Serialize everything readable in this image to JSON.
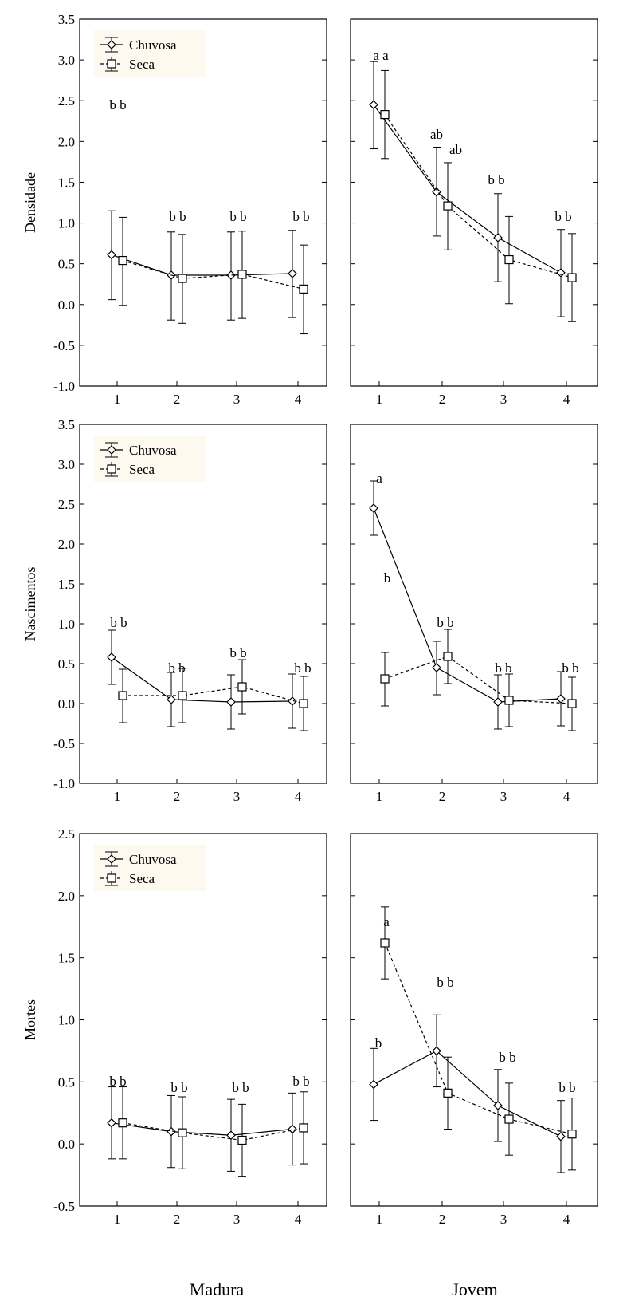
{
  "figure": {
    "group_labels": [
      "Madura",
      "Jovem"
    ]
  },
  "chart_data": [
    {
      "type": "line",
      "row": 0,
      "col": 0,
      "ylabel": "Densidade",
      "ylim": [
        -1.0,
        3.5
      ],
      "yticks": [
        "3.5",
        "3.0",
        "2.5",
        "2.0",
        "1.5",
        "1.0",
        "0.5",
        "0.0",
        "-0.5",
        "-1.0"
      ],
      "x": [
        "1",
        "2",
        "3",
        "4"
      ],
      "legend": {
        "position": "top-left",
        "entries": [
          "Chuvosa",
          "Seca"
        ]
      },
      "series": [
        {
          "name": "Chuvosa",
          "marker": "diamond",
          "dash": "solid",
          "values": [
            0.61,
            0.36,
            0.36,
            0.38
          ],
          "err_low": [
            0.06,
            -0.19,
            -0.19,
            -0.16
          ],
          "err_high": [
            1.15,
            0.89,
            0.89,
            0.91
          ]
        },
        {
          "name": "Seca",
          "marker": "square",
          "dash": "dashed",
          "values": [
            0.54,
            0.32,
            0.37,
            0.19
          ],
          "err_low": [
            -0.01,
            -0.23,
            -0.17,
            -0.36
          ],
          "err_high": [
            1.07,
            0.86,
            0.9,
            0.73
          ]
        }
      ],
      "annotations": [
        "b b",
        "b b",
        "b b",
        "b b"
      ]
    },
    {
      "type": "line",
      "row": 0,
      "col": 1,
      "ylabel": "",
      "ylim": [
        -1.0,
        3.5
      ],
      "x": [
        "1",
        "2",
        "3",
        "4"
      ],
      "series": [
        {
          "name": "Chuvosa",
          "marker": "diamond",
          "dash": "solid",
          "values": [
            2.45,
            1.38,
            0.82,
            0.39
          ],
          "err_low": [
            1.91,
            0.84,
            0.28,
            -0.15
          ],
          "err_high": [
            2.98,
            1.93,
            1.36,
            0.92
          ]
        },
        {
          "name": "Seca",
          "marker": "square",
          "dash": "dashed",
          "values": [
            2.33,
            1.21,
            0.55,
            0.33
          ],
          "err_low": [
            1.79,
            0.67,
            0.01,
            -0.21
          ],
          "err_high": [
            2.87,
            1.74,
            1.08,
            0.87
          ]
        }
      ],
      "annotations": [
        "a a",
        "ab",
        "ab",
        "b b",
        "b b"
      ]
    },
    {
      "type": "line",
      "row": 1,
      "col": 0,
      "ylabel": "Nascimentos",
      "ylim": [
        -1.0,
        3.5
      ],
      "yticks": [
        "3.5",
        "3.0",
        "2.5",
        "2.0",
        "1.5",
        "1.0",
        "0.5",
        "0.0",
        "-0.5",
        "-1.0"
      ],
      "x": [
        "1",
        "2",
        "3",
        "4"
      ],
      "legend": {
        "position": "top-left",
        "entries": [
          "Chuvosa",
          "Seca"
        ]
      },
      "series": [
        {
          "name": "Chuvosa",
          "marker": "diamond",
          "dash": "solid",
          "values": [
            0.58,
            0.05,
            0.02,
            0.03
          ],
          "err_low": [
            0.24,
            -0.29,
            -0.32,
            -0.31
          ],
          "err_high": [
            0.92,
            0.39,
            0.36,
            0.37
          ]
        },
        {
          "name": "Seca",
          "marker": "square",
          "dash": "dashed",
          "values": [
            0.1,
            0.1,
            0.21,
            0.0
          ],
          "err_low": [
            -0.24,
            -0.24,
            -0.13,
            -0.34
          ],
          "err_high": [
            0.43,
            0.44,
            0.55,
            0.34
          ]
        }
      ],
      "annotations": [
        "b b",
        "b b",
        "b b",
        "b b"
      ]
    },
    {
      "type": "line",
      "row": 1,
      "col": 1,
      "ylabel": "",
      "ylim": [
        -1.0,
        3.5
      ],
      "x": [
        "1",
        "2",
        "3",
        "4"
      ],
      "series": [
        {
          "name": "Chuvosa",
          "marker": "diamond",
          "dash": "solid",
          "values": [
            2.45,
            0.45,
            0.02,
            0.06
          ],
          "err_low": [
            2.11,
            0.11,
            -0.32,
            -0.28
          ],
          "err_high": [
            2.79,
            0.78,
            0.36,
            0.4
          ]
        },
        {
          "name": "Seca",
          "marker": "square",
          "dash": "dashed",
          "values": [
            0.31,
            0.59,
            0.04,
            0.0
          ],
          "err_low": [
            -0.03,
            0.25,
            -0.29,
            -0.34
          ],
          "err_high": [
            0.64,
            0.93,
            0.37,
            0.33
          ]
        }
      ],
      "annotations": [
        "a",
        "b",
        "b b",
        "b b",
        "b b"
      ]
    },
    {
      "type": "line",
      "row": 2,
      "col": 0,
      "ylabel": "Mortes",
      "ylim": [
        -0.5,
        2.5
      ],
      "yticks": [
        "2.5",
        "2.0",
        "1.5",
        "1.0",
        "0.5",
        "0.0",
        "-0.5"
      ],
      "x": [
        "1",
        "2",
        "3",
        "4"
      ],
      "legend": {
        "position": "top-left",
        "entries": [
          "Chuvosa",
          "Seca"
        ]
      },
      "series": [
        {
          "name": "Chuvosa",
          "marker": "diamond",
          "dash": "solid",
          "values": [
            0.17,
            0.1,
            0.07,
            0.12
          ],
          "err_low": [
            -0.12,
            -0.19,
            -0.22,
            -0.17
          ],
          "err_high": [
            0.46,
            0.39,
            0.36,
            0.41
          ]
        },
        {
          "name": "Seca",
          "marker": "square",
          "dash": "dashed",
          "values": [
            0.17,
            0.09,
            0.03,
            0.13
          ],
          "err_low": [
            -0.12,
            -0.2,
            -0.26,
            -0.16
          ],
          "err_high": [
            0.46,
            0.38,
            0.32,
            0.42
          ]
        }
      ],
      "annotations": [
        "b b",
        "b b",
        "b b",
        "b b"
      ]
    },
    {
      "type": "line",
      "row": 2,
      "col": 1,
      "ylabel": "",
      "ylim": [
        -0.5,
        2.5
      ],
      "x": [
        "1",
        "2",
        "3",
        "4"
      ],
      "series": [
        {
          "name": "Chuvosa",
          "marker": "diamond",
          "dash": "solid",
          "values": [
            0.48,
            0.75,
            0.31,
            0.06
          ],
          "err_low": [
            0.19,
            0.46,
            0.02,
            -0.23
          ],
          "err_high": [
            0.77,
            1.04,
            0.6,
            0.35
          ]
        },
        {
          "name": "Seca",
          "marker": "square",
          "dash": "dashed",
          "values": [
            1.62,
            0.41,
            0.2,
            0.08
          ],
          "err_low": [
            1.33,
            0.12,
            -0.09,
            -0.21
          ],
          "err_high": [
            1.91,
            0.7,
            0.49,
            0.37
          ]
        }
      ],
      "annotations": [
        "a",
        "b b",
        "b",
        "b b",
        "b b"
      ]
    }
  ]
}
